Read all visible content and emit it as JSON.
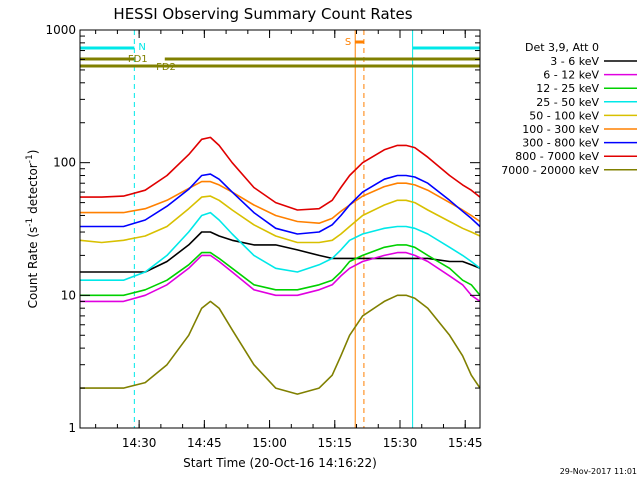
{
  "chart_data": {
    "type": "line",
    "title": "HESSI Observing Summary Count Rates",
    "xlabel": "Start Time (20-Oct-16 14:16:22)",
    "ylabel": "Count Rate (s",
    "ylabel_sup1": "-1",
    "ylabel_mid": " detector",
    "ylabel_sup2": "-1",
    "ylabel_end": ")",
    "y_scale": "log",
    "ylim": [
      1,
      1000
    ],
    "xlim_minutes": [
      0,
      92
    ],
    "x_ticks": [
      {
        "min": 13.6,
        "label": "14:30"
      },
      {
        "min": 28.6,
        "label": "14:45"
      },
      {
        "min": 43.6,
        "label": "15:00"
      },
      {
        "min": 58.6,
        "label": "15:15"
      },
      {
        "min": 73.6,
        "label": "15:30"
      },
      {
        "min": 88.6,
        "label": "15:45"
      }
    ],
    "y_ticks": [
      {
        "value": 1,
        "label": "1"
      },
      {
        "value": 10,
        "label": "10"
      },
      {
        "value": 100,
        "label": "100"
      },
      {
        "value": 1000,
        "label": "1000"
      }
    ],
    "legend_title": "Det 3,9, Att 0",
    "legend_placement": "right",
    "date_stamp": "29-Nov-2017 11:01",
    "times_min": [
      0,
      5,
      10,
      15,
      20,
      25,
      28,
      30,
      32,
      35,
      40,
      45,
      50,
      55,
      58,
      60,
      62,
      65,
      70,
      73,
      75,
      77,
      80,
      85,
      88,
      90,
      92
    ],
    "series": [
      {
        "name": "3 - 6 keV",
        "color": "#000000",
        "values": [
          15,
          15,
          15,
          15,
          18,
          24,
          30,
          30,
          28,
          26,
          24,
          24,
          22,
          20,
          19,
          19,
          19,
          19,
          19,
          19,
          19,
          19,
          19,
          18,
          18,
          17,
          16
        ]
      },
      {
        "name": "6 - 12 keV",
        "color": "#e000e0",
        "values": [
          9,
          9,
          9,
          10,
          12,
          16,
          20,
          20,
          18,
          15,
          11,
          10,
          10,
          11,
          12,
          14,
          16,
          18,
          20,
          21,
          21,
          20,
          18,
          14,
          12,
          10,
          9
        ]
      },
      {
        "name": "12 - 25 keV",
        "color": "#00d000",
        "values": [
          10,
          10,
          10,
          11,
          13,
          17,
          21,
          21,
          19,
          16,
          12,
          11,
          11,
          12,
          13,
          15,
          18,
          20,
          23,
          24,
          24,
          23,
          20,
          16,
          13,
          12,
          10
        ]
      },
      {
        "name": "25 - 50 keV",
        "color": "#00e8e8",
        "values": [
          13,
          13,
          13,
          15,
          20,
          30,
          40,
          42,
          37,
          29,
          20,
          16,
          15,
          17,
          19,
          22,
          26,
          29,
          32,
          33,
          33,
          32,
          29,
          23,
          20,
          18,
          16
        ]
      },
      {
        "name": "50 - 100 keV",
        "color": "#d8c000",
        "values": [
          26,
          25,
          26,
          28,
          33,
          45,
          55,
          56,
          52,
          44,
          34,
          28,
          25,
          25,
          26,
          29,
          33,
          40,
          48,
          52,
          52,
          50,
          44,
          36,
          32,
          30,
          28
        ]
      },
      {
        "name": "100 - 300 keV",
        "color": "#ff8000",
        "values": [
          42,
          42,
          42,
          45,
          52,
          64,
          72,
          72,
          68,
          60,
          48,
          40,
          36,
          35,
          38,
          43,
          48,
          56,
          66,
          70,
          70,
          68,
          62,
          50,
          44,
          40,
          36
        ]
      },
      {
        "name": "300 - 800 keV",
        "color": "#0000ff",
        "values": [
          33,
          33,
          33,
          37,
          47,
          63,
          80,
          82,
          75,
          60,
          42,
          32,
          29,
          30,
          34,
          40,
          48,
          60,
          75,
          80,
          80,
          78,
          70,
          52,
          43,
          38,
          33
        ]
      },
      {
        "name": "800 - 7000 keV",
        "color": "#e00000",
        "values": [
          55,
          55,
          56,
          62,
          80,
          115,
          150,
          155,
          135,
          100,
          65,
          50,
          44,
          45,
          52,
          65,
          80,
          100,
          125,
          135,
          135,
          130,
          110,
          80,
          68,
          62,
          55
        ]
      },
      {
        "name": "7000 - 20000 keV",
        "color": "#808000",
        "values": [
          2,
          2,
          2,
          2.2,
          3,
          5,
          8,
          9,
          8,
          5.5,
          3,
          2,
          1.8,
          2,
          2.5,
          3.5,
          5,
          7,
          9,
          10,
          10,
          9.5,
          8,
          5,
          3.5,
          2.5,
          2
        ]
      }
    ],
    "annotations": {
      "night": [
        {
          "start_min": 0,
          "end_min": 12.5
        },
        {
          "start_min": 76.5,
          "end_min": 92
        }
      ],
      "night_label": "N",
      "saa": [
        {
          "start_min": 63.3,
          "end_min": 65.3
        }
      ],
      "saa_label": "S",
      "fd1": [
        {
          "start_min": 0,
          "end_min": 12.5
        },
        {
          "start_min": 19.5,
          "end_min": 92
        }
      ],
      "fd1_label": "FD1",
      "fd2": [
        {
          "start_min": 0,
          "end_min": 92
        }
      ],
      "fd2_label": "FD2",
      "cyan_markers_min": [
        0,
        12.5,
        76.5,
        92
      ],
      "orange_markers_min": [
        63.3,
        65.3
      ],
      "night_color": "#00e8e8",
      "saa_color": "#ff8000",
      "flag_color": "#808000"
    }
  }
}
